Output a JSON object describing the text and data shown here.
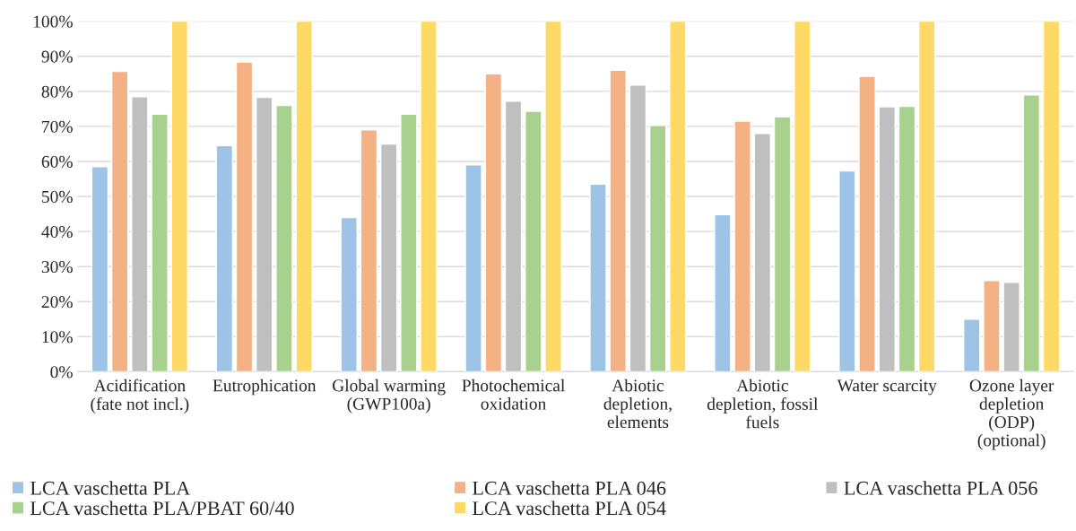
{
  "chart_data": {
    "type": "bar",
    "categories": [
      "Acidification\n(fate not incl.)",
      "Eutrophication",
      "Global warming\n(GWP100a)",
      "Photochemical\noxidation",
      "Abiotic\ndepletion,\nelements",
      "Abiotic\ndepletion, fossil\nfuels",
      "Water scarcity",
      "Ozone layer\ndepletion\n(ODP)\n(optional)"
    ],
    "series": [
      {
        "name": "LCA vaschetta PLA",
        "color": "#9dc3e6",
        "values": [
          58.5,
          64.5,
          44,
          59,
          53.5,
          44.8,
          57.3,
          15
        ]
      },
      {
        "name": "LCA vaschetta PLA 046",
        "color": "#f4b183",
        "values": [
          85.7,
          88.3,
          69,
          85,
          86,
          71.5,
          84.3,
          26
        ]
      },
      {
        "name": "LCA vaschetta PLA 056",
        "color": "#bfbfbf",
        "values": [
          78.5,
          78.3,
          65,
          77.2,
          81.8,
          68,
          75.6,
          25.5
        ]
      },
      {
        "name": "LCA vaschetta PLA/PBAT 60/40",
        "color": "#a9d18e",
        "values": [
          73.5,
          76,
          73.5,
          74.3,
          70.3,
          72.7,
          75.7,
          79
        ]
      },
      {
        "name": "LCA vaschetta PLA 054",
        "color": "#ffd966",
        "values": [
          100,
          100,
          100,
          100,
          100,
          100,
          100,
          100
        ]
      }
    ],
    "ylim": [
      0,
      100
    ],
    "yticks": [
      {
        "value": 0,
        "label": "0%"
      },
      {
        "value": 10,
        "label": "10%"
      },
      {
        "value": 20,
        "label": "20%"
      },
      {
        "value": 30,
        "label": "30%"
      },
      {
        "value": 40,
        "label": "40%"
      },
      {
        "value": 50,
        "label": "50%"
      },
      {
        "value": 60,
        "label": "60%"
      },
      {
        "value": 70,
        "label": "70%"
      },
      {
        "value": 80,
        "label": "80%"
      },
      {
        "value": 90,
        "label": "90%"
      },
      {
        "value": 100,
        "label": "100%"
      }
    ],
    "grid": "y",
    "legend": "bottom"
  }
}
